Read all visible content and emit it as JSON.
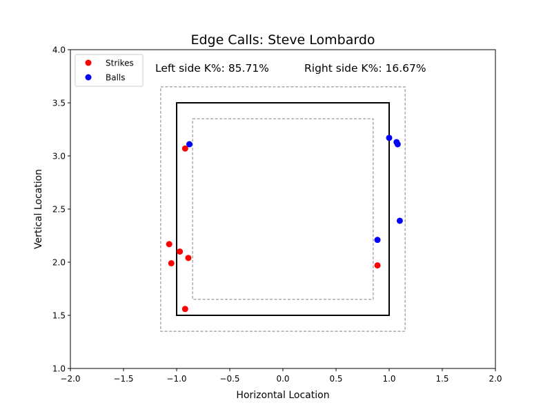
{
  "chart_data": {
    "type": "scatter",
    "title": "Edge Calls: Steve Lombardo",
    "xlabel": "Horizontal Location",
    "ylabel": "Vertical Location",
    "xlim": [
      -2.0,
      2.0
    ],
    "ylim": [
      1.0,
      4.0
    ],
    "x_ticks": [
      "−2.0",
      "−1.5",
      "−1.0",
      "−0.5",
      "0.0",
      "0.5",
      "1.0",
      "1.5",
      "2.0"
    ],
    "y_ticks": [
      "1.0",
      "1.5",
      "2.0",
      "2.5",
      "3.0",
      "3.5",
      "4.0"
    ],
    "grid": false,
    "legend_position": "top-left",
    "annotations": {
      "left": "Left side K%: 85.71%",
      "right": "Right side K%: 16.67%"
    },
    "zones": {
      "strike_zone": {
        "x": [
          -1.0,
          1.0
        ],
        "y": [
          1.5,
          3.5
        ],
        "color": "#000000",
        "style": "solid"
      },
      "outer_zone": {
        "x": [
          -1.15,
          1.15
        ],
        "y": [
          1.35,
          3.65
        ],
        "color": "#808080",
        "style": "dashed"
      },
      "inner_zone": {
        "x": [
          -0.85,
          0.85
        ],
        "y": [
          1.65,
          3.35
        ],
        "color": "#808080",
        "style": "dashed"
      }
    },
    "series": [
      {
        "name": "Strikes",
        "color": "#ff0000",
        "points": [
          {
            "x": -0.92,
            "y": 3.07
          },
          {
            "x": -1.07,
            "y": 2.17
          },
          {
            "x": -0.97,
            "y": 2.1
          },
          {
            "x": -1.05,
            "y": 1.99
          },
          {
            "x": -0.89,
            "y": 2.04
          },
          {
            "x": -0.92,
            "y": 1.56
          },
          {
            "x": 0.89,
            "y": 1.97
          }
        ]
      },
      {
        "name": "Balls",
        "color": "#0000ff",
        "points": [
          {
            "x": -0.88,
            "y": 3.11
          },
          {
            "x": 1.0,
            "y": 3.17
          },
          {
            "x": 1.07,
            "y": 3.13
          },
          {
            "x": 1.08,
            "y": 3.11
          },
          {
            "x": 1.1,
            "y": 2.39
          },
          {
            "x": 0.89,
            "y": 2.21
          }
        ]
      }
    ]
  }
}
